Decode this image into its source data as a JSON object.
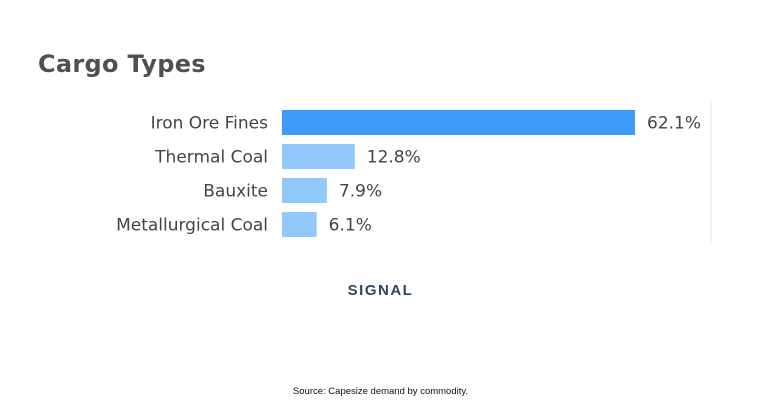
{
  "chart_data": {
    "type": "bar",
    "orientation": "horizontal",
    "title": "Cargo Types",
    "categories": [
      "Iron Ore Fines",
      "Thermal Coal",
      "Bauxite",
      "Metallurgical Coal"
    ],
    "values": [
      62.1,
      12.8,
      7.9,
      6.1
    ],
    "value_labels": [
      "62.1%",
      "12.8%",
      "7.9%",
      "6.1%"
    ],
    "xlim": [
      0,
      62.1
    ],
    "xlabel": "",
    "ylabel": "",
    "colors": {
      "highlight": "#3e9bf8",
      "default": "#93c8fb"
    }
  },
  "logo_text": "SIGNAL",
  "source": "Source: Capesize demand by commodity."
}
